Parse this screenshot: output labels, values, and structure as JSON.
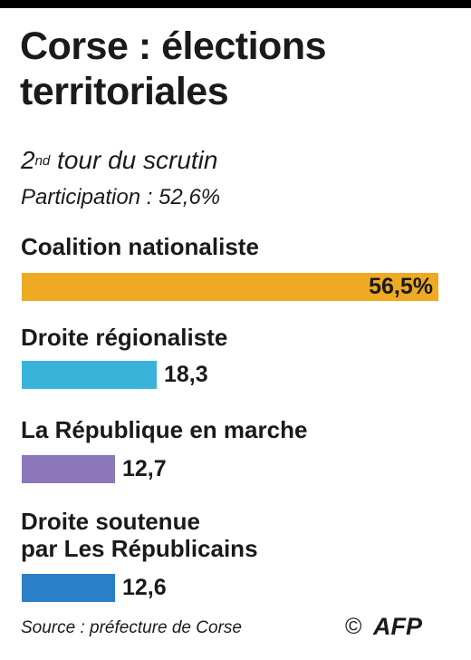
{
  "title": "Corse : élections territoriales",
  "subtitle": {
    "ordinal": "2",
    "suffix": "nd",
    "rest": " tour du scrutin"
  },
  "participation": "Participation : 52,6%",
  "chart_data": {
    "type": "bar",
    "orientation": "horizontal",
    "categories": [
      "Coalition nationaliste",
      "Droite régionaliste",
      "La République en marche",
      "Droite soutenue par Les Républicains"
    ],
    "category_lines": [
      [
        "Coalition nationaliste"
      ],
      [
        "Droite régionaliste"
      ],
      [
        "La République en marche"
      ],
      [
        "Droite soutenue",
        "par Les Républicains"
      ]
    ],
    "values": [
      56.5,
      18.3,
      12.7,
      12.6
    ],
    "value_labels": [
      "56,5%",
      "18,3",
      "12,7",
      "12,6"
    ],
    "colors": [
      "#eeaa22",
      "#3ab3da",
      "#8b77b9",
      "#2a7fc7"
    ],
    "unit": "%",
    "xlim": [
      0,
      56.5
    ]
  },
  "source": "Source : préfecture de Corse",
  "credit": {
    "copyright_symbol": "©",
    "logo": "AFP"
  }
}
